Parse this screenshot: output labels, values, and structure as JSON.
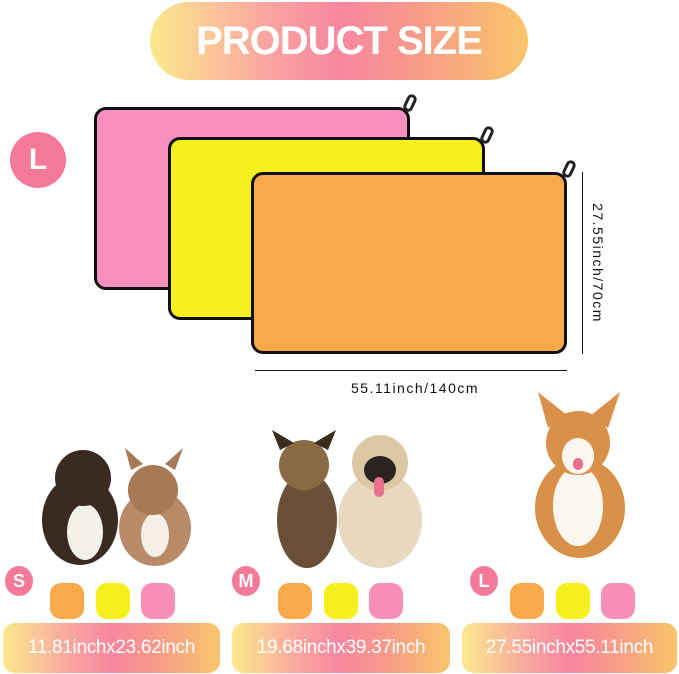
{
  "title": "PRODUCT SIZE",
  "top_size_badge": "L",
  "dimensions": {
    "height": "27.55inch/70cm",
    "width": "55.11inch/140cm"
  },
  "colors": {
    "pink": "#f88fbf",
    "yellow": "#f5ef1d",
    "orange": "#f9a94a",
    "badge": "#f57a9a"
  },
  "sizes": [
    {
      "badge": "S",
      "label": "11.81inchx23.62inch"
    },
    {
      "badge": "M",
      "label": "19.68inchx39.37inch"
    },
    {
      "badge": "L",
      "label": "27.55inchx55.11inch"
    }
  ]
}
